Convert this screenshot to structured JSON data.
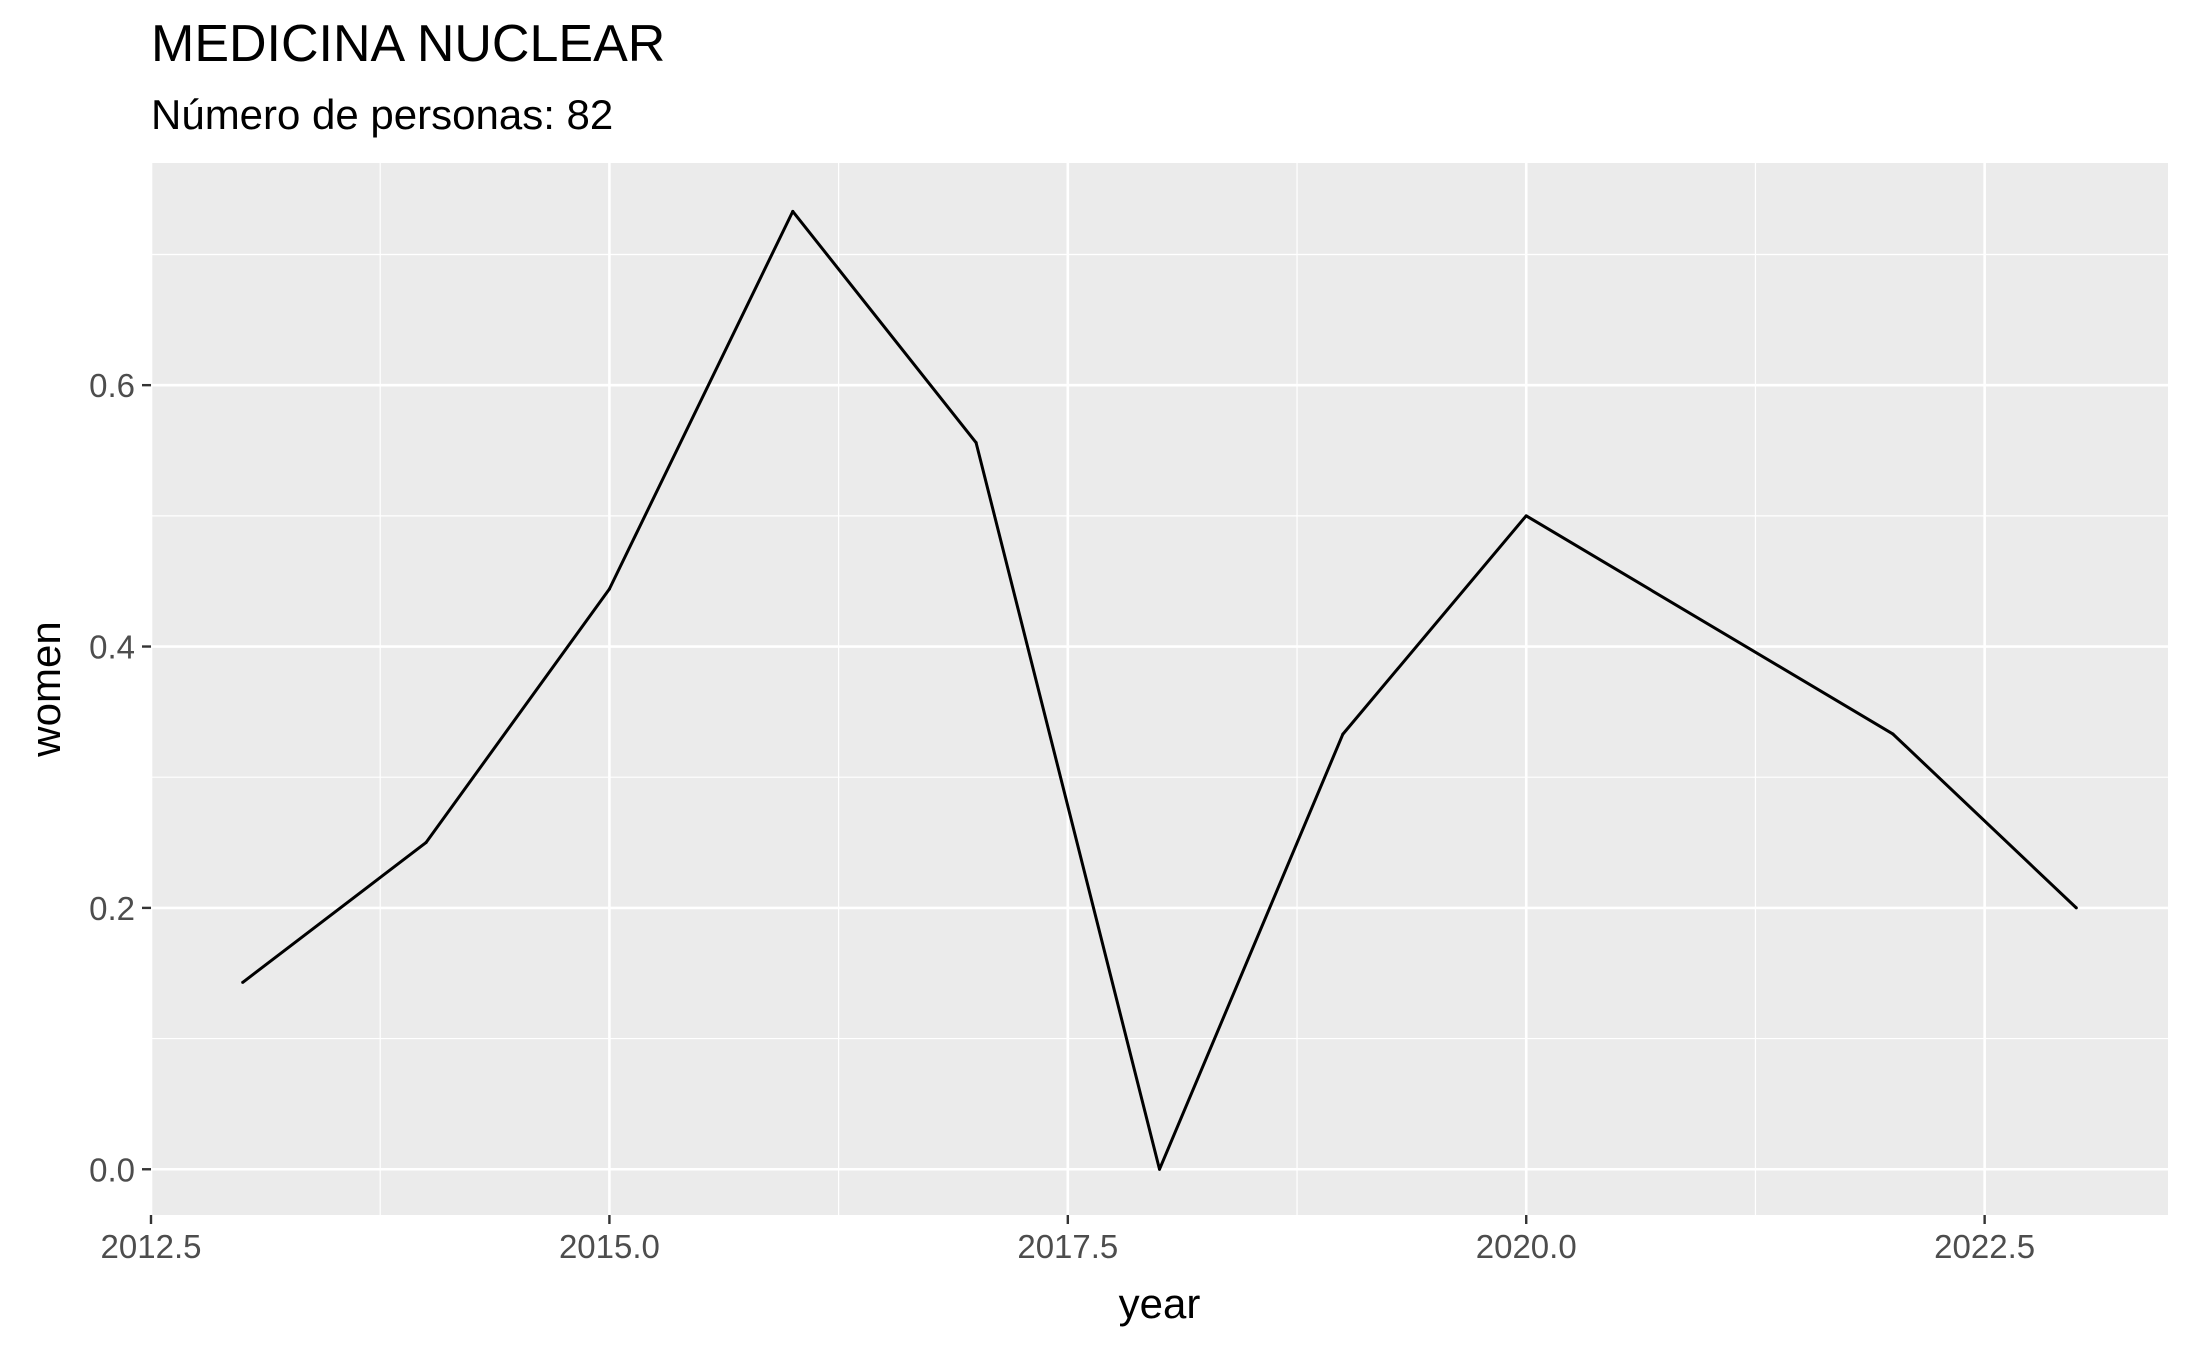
{
  "header": {
    "title": "MEDICINA NUCLEAR",
    "subtitle": "Número de personas: 82"
  },
  "colors": {
    "panel": "#EBEBEB",
    "grid": "#FFFFFF",
    "line": "#000000",
    "tick_text": "#4D4D4D"
  },
  "chart_data": {
    "type": "line",
    "title": "MEDICINA NUCLEAR",
    "subtitle": "Número de personas: 82",
    "xlabel": "year",
    "ylabel": "women",
    "x": [
      2013,
      2014,
      2015,
      2016,
      2017,
      2018,
      2019,
      2020,
      2022,
      2023
    ],
    "series": [
      {
        "values": [
          0.143,
          0.25,
          0.444,
          0.733,
          0.556,
          0.0,
          0.333,
          0.5,
          0.333,
          0.2
        ]
      }
    ],
    "xlim": [
      2012.5,
      2023.5
    ],
    "ylim": [
      -0.035,
      0.77
    ],
    "xticks": [
      2012.5,
      2015.0,
      2017.5,
      2020.0,
      2022.5
    ],
    "xtick_labels": [
      "2012.5",
      "2015.0",
      "2017.5",
      "2020.0",
      "2022.5"
    ],
    "yticks": [
      0.0,
      0.2,
      0.4,
      0.6
    ],
    "ytick_labels": [
      "0.0",
      "0.2",
      "0.4",
      "0.6"
    ],
    "grid": true,
    "legend": "none"
  }
}
